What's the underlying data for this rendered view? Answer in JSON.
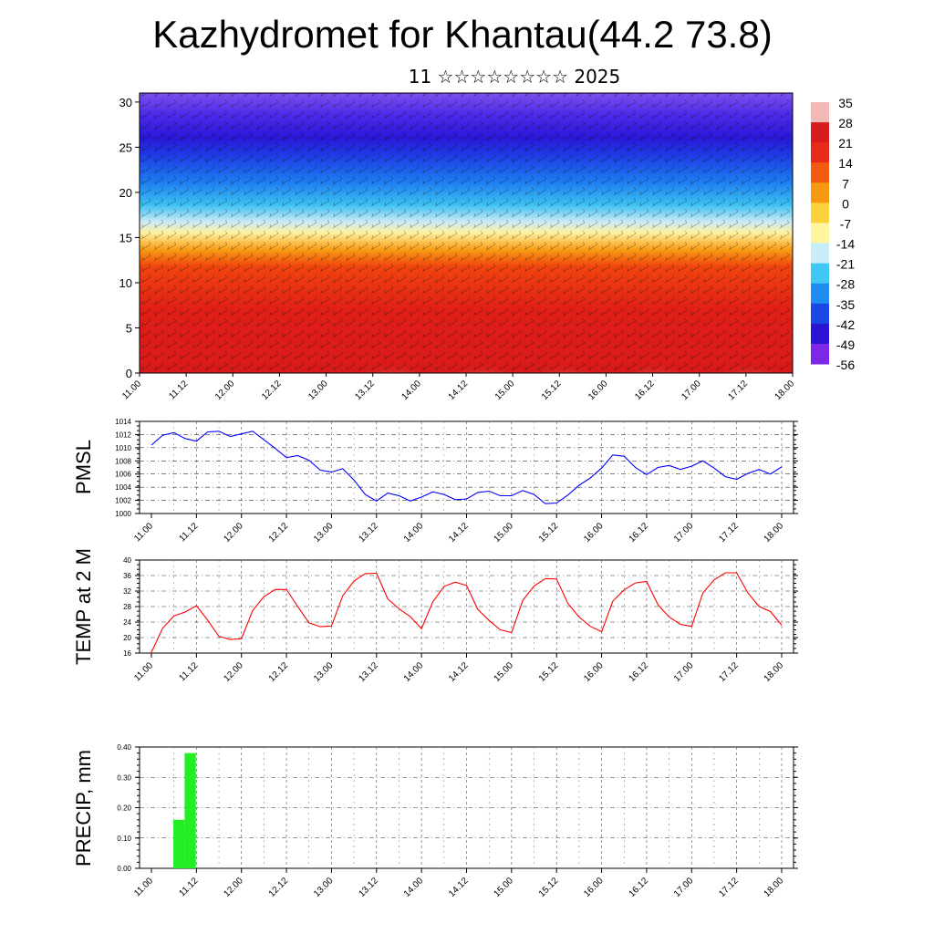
{
  "header": {
    "title": "Kazhydromet for Khantau(44.2 73.8)",
    "subtitle": "11 ☆☆☆☆☆☆☆☆ 2025"
  },
  "colorbar": {
    "labels": [
      "35",
      "28",
      "21",
      "14",
      "7",
      "0",
      "-7",
      "-14",
      "-21",
      "-28",
      "-35",
      "-42",
      "-49",
      "-56"
    ],
    "colors": [
      "#f2b8b8",
      "#d61c1c",
      "#e82a1a",
      "#f25a10",
      "#f89a10",
      "#fcd23c",
      "#fff6a0",
      "#c8ecf8",
      "#40c8f4",
      "#1e8cf0",
      "#1c48e6",
      "#2c14d6",
      "#7c28e6"
    ]
  },
  "chart_data": [
    {
      "type": "heatmap",
      "title": "",
      "xlabel": "",
      "ylabel": "",
      "x_ticks": [
        "11.00",
        "11.12",
        "12.00",
        "12.12",
        "13.00",
        "13.12",
        "14.00",
        "14.12",
        "15.00",
        "15.12",
        "16.00",
        "16.12",
        "17.00",
        "17.12",
        "18.00"
      ],
      "y_ticks": [
        "0",
        "5",
        "10",
        "15",
        "20",
        "25",
        "30"
      ],
      "ylim": [
        0,
        31
      ],
      "value_range": [
        -56,
        35
      ],
      "note": "temperature cross-section with wind barbs"
    },
    {
      "type": "line",
      "ylabel": "PMSL",
      "color": "#0000ff",
      "ylim": [
        1000,
        1014
      ],
      "y_ticks": [
        "1000",
        "1002",
        "1004",
        "1006",
        "1008",
        "1010",
        "1012",
        "1014"
      ],
      "x_ticks": [
        "11.00",
        "11.12",
        "12.00",
        "12.12",
        "13.00",
        "13.12",
        "14.00",
        "14.12",
        "15.00",
        "15.12",
        "16.00",
        "16.12",
        "17.00",
        "17.12",
        "18.00"
      ],
      "values": [
        1010.4,
        1011.9,
        1012.3,
        1011.4,
        1011.0,
        1012.4,
        1012.5,
        1011.7,
        1012.1,
        1012.5,
        1011.2,
        1009.9,
        1008.5,
        1008.8,
        1008.1,
        1006.6,
        1006.3,
        1006.8,
        1005.1,
        1002.9,
        1001.9,
        1003.1,
        1002.7,
        1001.9,
        1002.5,
        1003.3,
        1002.9,
        1002.1,
        1002.2,
        1003.2,
        1003.4,
        1002.7,
        1002.7,
        1003.5,
        1002.9,
        1001.5,
        1001.6,
        1002.8,
        1004.3,
        1005.4,
        1006.9,
        1008.9,
        1008.7,
        1007.0,
        1005.9,
        1007.0,
        1007.3,
        1006.7,
        1007.2,
        1008.0,
        1006.9,
        1005.6,
        1005.2,
        1006.1,
        1006.7,
        1006.0,
        1007.1
      ]
    },
    {
      "type": "line",
      "ylabel": "TEMP at 2 M",
      "color": "#ff0000",
      "ylim": [
        16,
        40
      ],
      "y_ticks": [
        "16",
        "20",
        "24",
        "28",
        "32",
        "36",
        "40"
      ],
      "x_ticks": [
        "11.00",
        "11.12",
        "12.00",
        "12.12",
        "13.00",
        "13.12",
        "14.00",
        "14.12",
        "15.00",
        "15.12",
        "16.00",
        "16.12",
        "17.00",
        "17.12",
        "18.00"
      ],
      "values": [
        16.2,
        22.4,
        25.6,
        26.6,
        28.2,
        24.5,
        20.3,
        19.5,
        19.7,
        27.0,
        30.6,
        32.4,
        32.4,
        28.0,
        23.8,
        22.8,
        23.0,
        30.8,
        34.6,
        36.5,
        36.6,
        30.0,
        27.4,
        25.4,
        22.3,
        29.2,
        33.2,
        34.3,
        33.4,
        27.3,
        24.4,
        22.0,
        21.3,
        29.6,
        33.3,
        35.2,
        35.1,
        28.8,
        25.3,
        22.9,
        21.5,
        29.4,
        32.3,
        34.1,
        34.5,
        28.5,
        25.3,
        23.4,
        22.9,
        31.5,
        34.9,
        36.7,
        36.7,
        31.5,
        28.0,
        26.7,
        23.2
      ]
    },
    {
      "type": "bar",
      "ylabel": "PRECIP, mm",
      "color": "#22ee22",
      "ylim": [
        0,
        0.4
      ],
      "y_ticks": [
        "0.00",
        "0.10",
        "0.20",
        "0.30",
        "0.40"
      ],
      "x_ticks": [
        "11.00",
        "11.12",
        "12.00",
        "12.12",
        "13.00",
        "13.12",
        "14.00",
        "14.12",
        "15.00",
        "15.12",
        "16.00",
        "16.12",
        "17.00",
        "17.12",
        "18.00"
      ],
      "values": [
        0,
        0,
        0.16,
        0.38,
        0,
        0,
        0,
        0,
        0,
        0,
        0,
        0,
        0,
        0,
        0,
        0,
        0,
        0,
        0,
        0,
        0,
        0,
        0,
        0,
        0,
        0,
        0,
        0,
        0,
        0,
        0,
        0,
        0,
        0,
        0,
        0,
        0,
        0,
        0,
        0,
        0,
        0,
        0,
        0,
        0,
        0,
        0,
        0,
        0,
        0,
        0,
        0,
        0,
        0,
        0,
        0,
        0
      ]
    }
  ]
}
